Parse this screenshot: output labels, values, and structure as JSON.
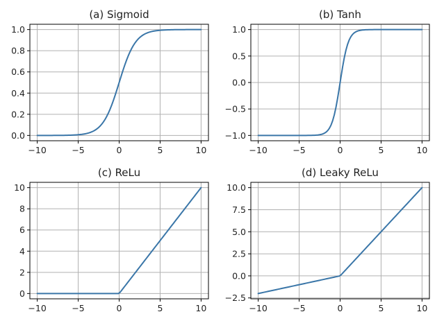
{
  "chart_data": [
    {
      "type": "line",
      "title": "(a) Sigmoid",
      "function": "sigmoid",
      "xlim": [
        -10.9,
        10.9
      ],
      "ylim": [
        -0.05,
        1.05
      ],
      "xticks": [
        -10,
        -5,
        0,
        5,
        10
      ],
      "xtick_labels": [
        "−10",
        "−5",
        "0",
        "5",
        "10"
      ],
      "yticks": [
        0.0,
        0.2,
        0.4,
        0.6,
        0.8,
        1.0
      ],
      "ytick_labels": [
        "0.0",
        "0.2",
        "0.4",
        "0.6",
        "0.8",
        "1.0"
      ],
      "grid": true,
      "color": "#3a76a8",
      "x": [
        -10,
        -9,
        -8,
        -7,
        -6,
        -5,
        -4,
        -3,
        -2,
        -1,
        0,
        1,
        2,
        3,
        4,
        5,
        6,
        7,
        8,
        9,
        10
      ],
      "y": [
        0.0,
        0.0001,
        0.0003,
        0.0009,
        0.0025,
        0.0067,
        0.018,
        0.047,
        0.119,
        0.269,
        0.5,
        0.731,
        0.881,
        0.953,
        0.982,
        0.993,
        0.998,
        0.999,
        1.0,
        1.0,
        1.0
      ]
    },
    {
      "type": "line",
      "title": "(b) Tanh",
      "function": "tanh",
      "xlim": [
        -10.9,
        10.9
      ],
      "ylim": [
        -1.1,
        1.1
      ],
      "xticks": [
        -10,
        -5,
        0,
        5,
        10
      ],
      "xtick_labels": [
        "−10",
        "−5",
        "0",
        "5",
        "10"
      ],
      "yticks": [
        -1.0,
        -0.5,
        0.0,
        0.5,
        1.0
      ],
      "ytick_labels": [
        "−1.0",
        "−0.5",
        "0.0",
        "0.5",
        "1.0"
      ],
      "grid": true,
      "color": "#3a76a8",
      "x": [
        -10,
        -5,
        -3,
        -2,
        -1.5,
        -1,
        -0.5,
        0,
        0.5,
        1,
        1.5,
        2,
        3,
        5,
        10
      ],
      "y": [
        -1.0,
        -0.9999,
        -0.995,
        -0.964,
        -0.905,
        -0.762,
        -0.462,
        0.0,
        0.462,
        0.762,
        0.905,
        0.964,
        0.995,
        0.9999,
        1.0
      ]
    },
    {
      "type": "line",
      "title": "(c) ReLu",
      "function": "relu",
      "xlim": [
        -10.9,
        10.9
      ],
      "ylim": [
        -0.5,
        10.5
      ],
      "xticks": [
        -10,
        -5,
        0,
        5,
        10
      ],
      "xtick_labels": [
        "−10",
        "−5",
        "0",
        "5",
        "10"
      ],
      "yticks": [
        0,
        2,
        4,
        6,
        8,
        10
      ],
      "ytick_labels": [
        "0",
        "2",
        "4",
        "6",
        "8",
        "10"
      ],
      "grid": true,
      "color": "#3a76a8",
      "x": [
        -10,
        0,
        10
      ],
      "y": [
        0,
        0,
        10
      ]
    },
    {
      "type": "line",
      "title": "(d) Leaky ReLu",
      "function": "leaky_relu",
      "xlim": [
        -10.9,
        10.9
      ],
      "ylim": [
        -2.6,
        10.6
      ],
      "xticks": [
        -10,
        -5,
        0,
        5,
        10
      ],
      "xtick_labels": [
        "−10",
        "−5",
        "0",
        "5",
        "10"
      ],
      "yticks": [
        -2.5,
        0.0,
        2.5,
        5.0,
        7.5,
        10.0
      ],
      "ytick_labels": [
        "−2.5",
        "0.0",
        "2.5",
        "5.0",
        "7.5",
        "10.0"
      ],
      "grid": true,
      "color": "#3a76a8",
      "x": [
        -10,
        0,
        10
      ],
      "y": [
        -2,
        0,
        10
      ]
    }
  ]
}
